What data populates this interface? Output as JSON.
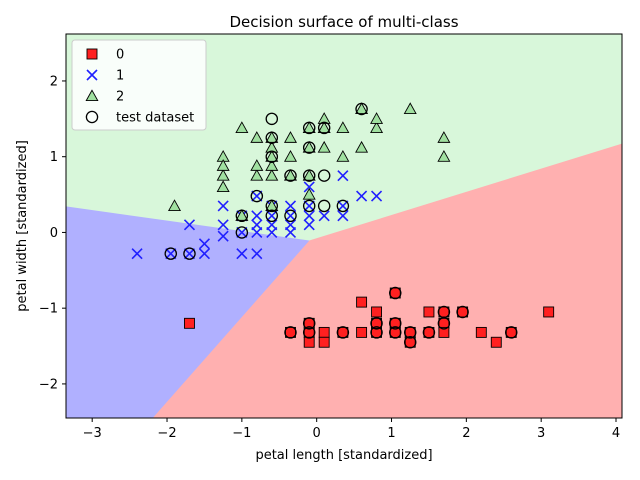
{
  "chart_data": {
    "type": "scatter",
    "title": "Decision surface of multi-class",
    "xlabel": "petal length [standardized]",
    "ylabel": "petal width [standardized]",
    "xlim": [
      -3.35,
      4.08
    ],
    "ylim": [
      -2.45,
      2.62
    ],
    "xticks": [
      {
        "v": -3,
        "label": "−3"
      },
      {
        "v": -2,
        "label": "−2"
      },
      {
        "v": -1,
        "label": "−1"
      },
      {
        "v": 0,
        "label": "0"
      },
      {
        "v": 1,
        "label": "1"
      },
      {
        "v": 2,
        "label": "2"
      },
      {
        "v": 3,
        "label": "3"
      },
      {
        "v": 4,
        "label": "4"
      }
    ],
    "yticks": [
      {
        "v": -2,
        "label": "−2"
      },
      {
        "v": -1,
        "label": "−1"
      },
      {
        "v": 0,
        "label": "0"
      },
      {
        "v": 1,
        "label": "1"
      },
      {
        "v": 2,
        "label": "2"
      }
    ],
    "grid": false,
    "legend_position": "top-left",
    "regions": [
      {
        "class": "0",
        "color": "#ffb0b0",
        "polygon": [
          [
            -2.2,
            -2.45
          ],
          [
            -0.1,
            -0.1
          ],
          [
            4.08,
            1.18
          ],
          [
            4.08,
            -2.45
          ]
        ]
      },
      {
        "class": "1",
        "color": "#b0b0ff",
        "polygon": [
          [
            -3.35,
            -2.45
          ],
          [
            -3.35,
            0.35
          ],
          [
            -0.1,
            -0.1
          ],
          [
            -2.2,
            -2.45
          ]
        ]
      },
      {
        "class": "2",
        "color": "#d8f7da",
        "polygon": [
          [
            -3.35,
            0.35
          ],
          [
            -3.35,
            2.62
          ],
          [
            4.08,
            2.62
          ],
          [
            4.08,
            1.18
          ],
          [
            -0.1,
            -0.1
          ]
        ]
      }
    ],
    "series": [
      {
        "name": "0",
        "marker": "square",
        "color": "#ff2020",
        "points": [
          [
            -1.7,
            -1.2
          ],
          [
            -0.35,
            -1.32
          ],
          [
            -0.1,
            -1.32
          ],
          [
            -0.1,
            -1.45
          ],
          [
            -0.1,
            -1.2
          ],
          [
            0.1,
            -1.32
          ],
          [
            0.1,
            -1.45
          ],
          [
            0.35,
            -1.32
          ],
          [
            0.6,
            -0.92
          ],
          [
            0.6,
            -1.32
          ],
          [
            0.8,
            -1.32
          ],
          [
            0.8,
            -1.2
          ],
          [
            0.8,
            -1.05
          ],
          [
            1.05,
            -0.8
          ],
          [
            1.05,
            -1.2
          ],
          [
            1.05,
            -1.32
          ],
          [
            1.25,
            -1.32
          ],
          [
            1.25,
            -1.45
          ],
          [
            1.5,
            -1.05
          ],
          [
            1.5,
            -1.32
          ],
          [
            1.7,
            -1.05
          ],
          [
            1.7,
            -1.2
          ],
          [
            1.7,
            -1.32
          ],
          [
            1.95,
            -1.05
          ],
          [
            2.2,
            -1.32
          ],
          [
            2.4,
            -1.45
          ],
          [
            2.6,
            -1.32
          ],
          [
            3.1,
            -1.05
          ]
        ]
      },
      {
        "name": "1",
        "marker": "x",
        "color": "#2020ff",
        "points": [
          [
            -2.4,
            -0.28
          ],
          [
            -1.95,
            -0.28
          ],
          [
            -1.7,
            -0.28
          ],
          [
            -1.7,
            0.1
          ],
          [
            -1.5,
            -0.15
          ],
          [
            -1.5,
            -0.28
          ],
          [
            -1.25,
            -0.05
          ],
          [
            -1.25,
            0.1
          ],
          [
            -1.25,
            0.35
          ],
          [
            -1.0,
            -0.28
          ],
          [
            -1.0,
            0.0
          ],
          [
            -1.0,
            0.22
          ],
          [
            -0.8,
            0.22
          ],
          [
            -0.8,
            0.0
          ],
          [
            -0.8,
            -0.28
          ],
          [
            -0.8,
            0.1
          ],
          [
            -0.8,
            0.48
          ],
          [
            -0.6,
            0.0
          ],
          [
            -0.6,
            0.1
          ],
          [
            -0.6,
            0.22
          ],
          [
            -0.6,
            0.35
          ],
          [
            -0.35,
            0.0
          ],
          [
            -0.35,
            0.22
          ],
          [
            -0.35,
            0.1
          ],
          [
            -0.35,
            0.35
          ],
          [
            -0.1,
            0.22
          ],
          [
            -0.1,
            0.35
          ],
          [
            -0.1,
            0.1
          ],
          [
            -0.1,
            0.6
          ],
          [
            0.1,
            0.22
          ],
          [
            0.35,
            0.22
          ],
          [
            0.35,
            0.35
          ],
          [
            0.35,
            0.75
          ],
          [
            0.6,
            0.48
          ],
          [
            0.8,
            0.48
          ]
        ]
      },
      {
        "name": "2",
        "marker": "triangle",
        "color": "#a0e0a0",
        "points": [
          [
            -1.9,
            0.35
          ],
          [
            -1.25,
            0.6
          ],
          [
            -1.25,
            0.75
          ],
          [
            -1.25,
            1.0
          ],
          [
            -1.25,
            0.88
          ],
          [
            -1.0,
            0.22
          ],
          [
            -1.0,
            1.38
          ],
          [
            -0.8,
            0.75
          ],
          [
            -0.8,
            0.88
          ],
          [
            -0.8,
            1.25
          ],
          [
            -0.6,
            0.35
          ],
          [
            -0.6,
            0.75
          ],
          [
            -0.6,
            0.88
          ],
          [
            -0.6,
            1.0
          ],
          [
            -0.6,
            1.12
          ],
          [
            -0.6,
            1.25
          ],
          [
            -0.35,
            1.0
          ],
          [
            -0.35,
            1.25
          ],
          [
            -0.35,
            0.75
          ],
          [
            -0.1,
            0.75
          ],
          [
            -0.1,
            1.12
          ],
          [
            -0.1,
            1.38
          ],
          [
            -0.1,
            0.5
          ],
          [
            0.1,
            1.12
          ],
          [
            0.1,
            1.38
          ],
          [
            0.1,
            1.5
          ],
          [
            0.35,
            1.0
          ],
          [
            0.35,
            1.38
          ],
          [
            0.6,
            1.12
          ],
          [
            0.6,
            1.63
          ],
          [
            0.8,
            1.38
          ],
          [
            0.8,
            1.5
          ],
          [
            1.25,
            1.63
          ],
          [
            1.7,
            1.0
          ],
          [
            1.7,
            1.25
          ]
        ]
      },
      {
        "name": "test dataset",
        "marker": "circle-open",
        "color": "#000000",
        "points": [
          [
            -0.35,
            -1.32
          ],
          [
            -0.1,
            -1.2
          ],
          [
            -0.1,
            -1.32
          ],
          [
            0.35,
            -1.32
          ],
          [
            0.8,
            -1.2
          ],
          [
            0.8,
            -1.32
          ],
          [
            1.05,
            -0.8
          ],
          [
            1.05,
            -1.2
          ],
          [
            1.05,
            -1.32
          ],
          [
            1.25,
            -1.32
          ],
          [
            1.25,
            -1.45
          ],
          [
            1.5,
            -1.32
          ],
          [
            1.7,
            -1.05
          ],
          [
            1.7,
            -1.2
          ],
          [
            1.95,
            -1.05
          ],
          [
            2.6,
            -1.32
          ],
          [
            -1.95,
            -0.28
          ],
          [
            -1.7,
            -0.28
          ],
          [
            -1.0,
            0.0
          ],
          [
            -1.0,
            0.22
          ],
          [
            -0.6,
            0.22
          ],
          [
            -0.6,
            0.35
          ],
          [
            -0.35,
            0.22
          ],
          [
            -0.1,
            0.35
          ],
          [
            0.1,
            0.35
          ],
          [
            0.35,
            0.35
          ],
          [
            -0.8,
            0.48
          ],
          [
            -0.6,
            1.25
          ],
          [
            -0.6,
            1.5
          ],
          [
            -0.35,
            0.75
          ],
          [
            -0.1,
            0.75
          ],
          [
            -0.1,
            1.12
          ],
          [
            0.1,
            0.75
          ],
          [
            0.1,
            1.38
          ],
          [
            0.6,
            1.63
          ],
          [
            -0.6,
            1.0
          ],
          [
            -0.1,
            1.38
          ]
        ]
      }
    ]
  }
}
